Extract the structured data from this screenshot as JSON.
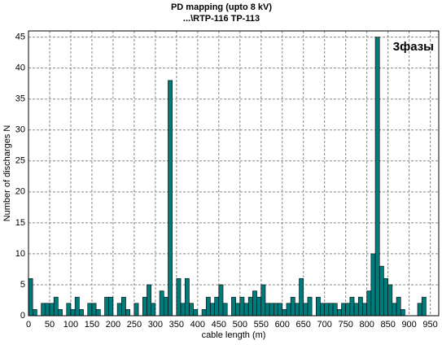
{
  "chart_data": {
    "type": "histogram",
    "title": "PD mapping (upto 8 kV)",
    "subtitle": "...\\RTP-116 TP-113",
    "annotation": "3фазы",
    "xlabel": "cable length (m)",
    "ylabel": "Number of discharges N",
    "color": "#007b7b",
    "grid": true,
    "bins": [
      0,
      10,
      20,
      30,
      40,
      50,
      60,
      70,
      80,
      90,
      100,
      110,
      120,
      130,
      140,
      150,
      160,
      170,
      180,
      190,
      200,
      210,
      220,
      230,
      240,
      250,
      260,
      270,
      280,
      290,
      300,
      310,
      320,
      330,
      340,
      350,
      360,
      370,
      380,
      390,
      400,
      410,
      420,
      430,
      440,
      450,
      460,
      470,
      480,
      490,
      500,
      510,
      520,
      530,
      540,
      550,
      560,
      570,
      580,
      590,
      600,
      610,
      620,
      630,
      640,
      650,
      660,
      670,
      680,
      690,
      700,
      710,
      720,
      730,
      740,
      750,
      760,
      770,
      780,
      790,
      800,
      810,
      820,
      830,
      840,
      850,
      860,
      870,
      880,
      890,
      900,
      910,
      920,
      930,
      940,
      950,
      960,
      970
    ],
    "values": [
      6,
      1,
      0,
      2,
      2,
      2,
      3,
      1,
      0,
      2,
      1,
      3,
      1,
      0,
      2,
      2,
      1,
      0,
      3,
      3,
      0,
      2,
      3,
      1,
      0,
      2,
      0,
      3,
      5,
      2,
      0,
      4,
      3,
      38,
      0,
      6,
      2,
      6,
      2,
      1,
      0,
      1,
      3,
      2,
      3,
      5,
      2,
      0,
      3,
      2,
      3,
      2,
      3,
      4,
      3,
      5,
      2,
      2,
      2,
      2,
      1,
      2,
      3,
      2,
      6,
      2,
      3,
      0,
      3,
      2,
      2,
      2,
      2,
      1,
      2,
      2,
      3,
      2,
      3,
      2,
      4,
      10,
      45,
      8,
      6,
      5,
      2,
      3,
      1,
      0,
      0,
      0,
      2,
      3,
      0,
      0,
      0
    ],
    "xlim": [
      0,
      970
    ],
    "ylim": [
      0,
      46
    ],
    "xticks": [
      0,
      50,
      100,
      150,
      200,
      250,
      300,
      350,
      400,
      450,
      500,
      550,
      600,
      650,
      700,
      750,
      800,
      850,
      900,
      950
    ],
    "yticks": [
      0,
      5,
      10,
      15,
      20,
      25,
      30,
      35,
      40,
      45
    ]
  }
}
